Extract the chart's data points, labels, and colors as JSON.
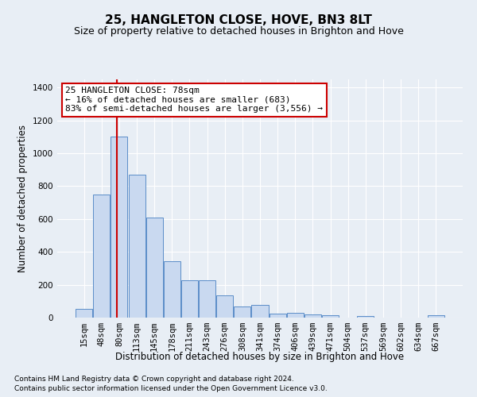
{
  "title": "25, HANGLETON CLOSE, HOVE, BN3 8LT",
  "subtitle": "Size of property relative to detached houses in Brighton and Hove",
  "xlabel": "Distribution of detached houses by size in Brighton and Hove",
  "ylabel": "Number of detached properties",
  "footnote1": "Contains HM Land Registry data © Crown copyright and database right 2024.",
  "footnote2": "Contains public sector information licensed under the Open Government Licence v3.0.",
  "categories": [
    "15sqm",
    "48sqm",
    "80sqm",
    "113sqm",
    "145sqm",
    "178sqm",
    "211sqm",
    "243sqm",
    "276sqm",
    "308sqm",
    "341sqm",
    "374sqm",
    "406sqm",
    "439sqm",
    "471sqm",
    "504sqm",
    "537sqm",
    "569sqm",
    "602sqm",
    "634sqm",
    "667sqm"
  ],
  "values": [
    52,
    750,
    1100,
    870,
    610,
    345,
    228,
    228,
    135,
    70,
    75,
    25,
    27,
    20,
    15,
    0,
    10,
    0,
    0,
    0,
    15
  ],
  "bar_color": "#c9d9f0",
  "bar_edge_color": "#5b8dc8",
  "vline_x": 1.85,
  "vline_color": "#cc0000",
  "annotation_text": "25 HANGLETON CLOSE: 78sqm\n← 16% of detached houses are smaller (683)\n83% of semi-detached houses are larger (3,556) →",
  "annotation_box_color": "#ffffff",
  "annotation_box_edge_color": "#cc0000",
  "ylim": [
    0,
    1450
  ],
  "yticks": [
    0,
    200,
    400,
    600,
    800,
    1000,
    1200,
    1400
  ],
  "background_color": "#e8eef5",
  "axes_background_color": "#e8eef5",
  "grid_color": "#ffffff",
  "title_fontsize": 11,
  "subtitle_fontsize": 9,
  "axis_label_fontsize": 8.5,
  "tick_fontsize": 7.5,
  "footnote_fontsize": 6.5,
  "annotation_fontsize": 8
}
